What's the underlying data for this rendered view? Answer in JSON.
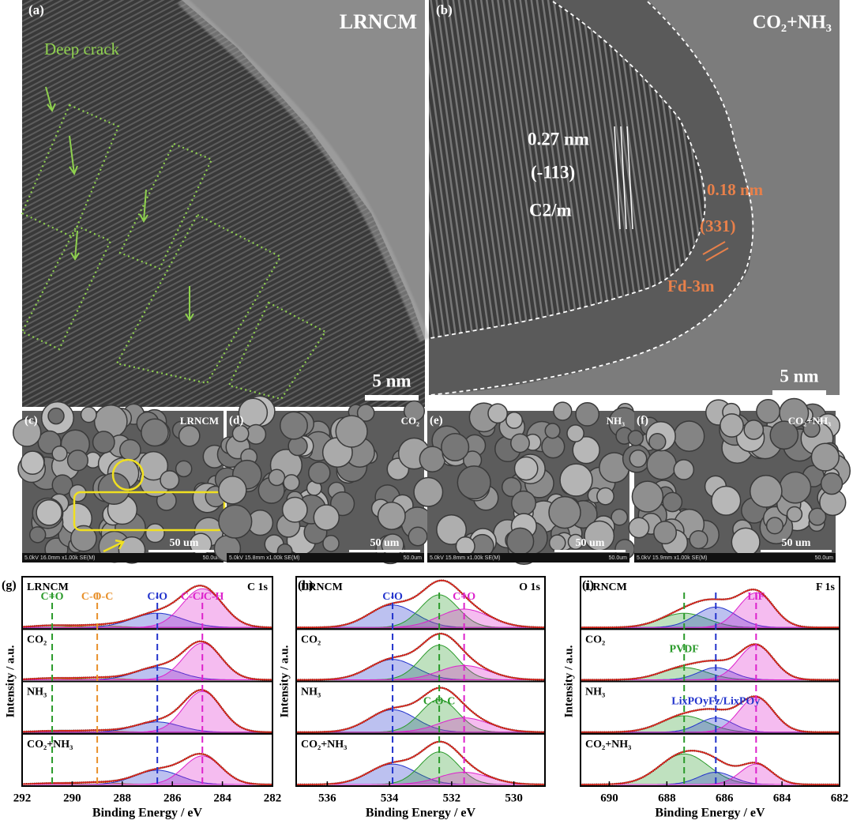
{
  "tem": [
    {
      "label": "(a)",
      "title": "LRNCM",
      "annotation": "Deep crack",
      "scale_bar": "5 nm"
    },
    {
      "label": "(b)",
      "title": "CO₂+NH₃",
      "spacing_1": "0.27 nm",
      "plane_1": "(-113)",
      "phase_1": "C2/m",
      "spacing_2": "0.18 nm",
      "plane_2": "(331)",
      "phase_2": "Fd-3m",
      "scale_bar": "5 nm"
    }
  ],
  "sem": [
    {
      "label": "(c)",
      "title": "LRNCM",
      "scale_bar": "50 um",
      "info": "5.0kV 16.0mm x1.00k SE(M)",
      "scale_text": "50.0um"
    },
    {
      "label": "(d)",
      "title": "CO₂",
      "scale_bar": "50 um",
      "info": "5.0kV 15.8mm x1.00k SE(M)",
      "scale_text": "50.0um"
    },
    {
      "label": "(e)",
      "title": "NH₃",
      "scale_bar": "50 um",
      "info": "5.0kV 15.8mm x1.00k SE(M)",
      "scale_text": "50.0um"
    },
    {
      "label": "(f)",
      "title": "CO₂+NH₃",
      "scale_bar": "50 um",
      "info": "5.0kV 15.9mm x1.00k SE(M)",
      "scale_text": "50.0um"
    }
  ],
  "xps": [
    {
      "label": "(g)",
      "element": "C 1s",
      "xlabel": "Binding Energy / eV",
      "ylabel": "Intensity / a.u.",
      "xlim": [
        292,
        282
      ],
      "xticks": [
        292,
        290,
        288,
        286,
        284,
        282
      ],
      "markers": [
        {
          "label": "C=O",
          "x": 290.8,
          "color": "#2a9a2a",
          "row": 0
        },
        {
          "label": "C-O-C",
          "x": 289,
          "color": "#e8902a",
          "row": 0
        },
        {
          "label": "C-O",
          "x": 286.6,
          "color": "#2233cc",
          "row": 0
        },
        {
          "label": "C-C/C-H",
          "x": 284.8,
          "color": "#dd22cc",
          "row": 0
        }
      ],
      "rows": [
        {
          "name": "LRNCM",
          "peaks": [
            {
              "m": 0,
              "h": 0.05,
              "w": 0.8
            },
            {
              "m": 1,
              "h": 0.05,
              "w": 0.8
            },
            {
              "m": 2,
              "h": 0.35,
              "w": 1.0
            },
            {
              "m": 3,
              "h": 0.95,
              "w": 0.8
            }
          ]
        },
        {
          "name": "CO₂",
          "peaks": [
            {
              "m": 0,
              "h": 0.04,
              "w": 0.8
            },
            {
              "m": 1,
              "h": 0.05,
              "w": 0.8
            },
            {
              "m": 2,
              "h": 0.3,
              "w": 0.9
            },
            {
              "m": 3,
              "h": 0.9,
              "w": 0.75
            }
          ]
        },
        {
          "name": "NH₃",
          "peaks": [
            {
              "m": 0,
              "h": 0.03,
              "w": 0.8
            },
            {
              "m": 1,
              "h": 0.04,
              "w": 0.8
            },
            {
              "m": 2,
              "h": 0.25,
              "w": 0.9
            },
            {
              "m": 3,
              "h": 1,
              "w": 0.75
            }
          ]
        },
        {
          "name": "CO₂+NH₃",
          "peaks": [
            {
              "m": 0,
              "h": 0.03,
              "w": 0.8
            },
            {
              "m": 1,
              "h": 0.05,
              "w": 0.8
            },
            {
              "m": 2,
              "h": 0.35,
              "w": 0.9
            },
            {
              "m": 3,
              "h": 0.7,
              "w": 0.75
            }
          ]
        }
      ]
    },
    {
      "label": "(h)",
      "element": "O 1s",
      "xlabel": "Binding Energy / eV",
      "ylabel": "Intensity / a.u.",
      "xlim": [
        537,
        529
      ],
      "xticks": [
        536,
        534,
        532,
        530
      ],
      "markers": [
        {
          "label": "C-O",
          "x": 533.9,
          "color": "#2233cc",
          "row": 0
        },
        {
          "label": "C-O-C",
          "x": 532.4,
          "color": "#2a9a2a",
          "row": 2
        },
        {
          "label": "C=O",
          "x": 531.6,
          "color": "#dd22cc",
          "row": 0
        }
      ],
      "rows": [
        {
          "name": "LRNCM",
          "peaks": [
            {
              "m": 0,
              "h": 0.55,
              "w": 0.75
            },
            {
              "m": 1,
              "h": 0.8,
              "w": 0.6
            },
            {
              "m": 2,
              "h": 0.45,
              "w": 0.8
            }
          ]
        },
        {
          "name": "CO₂",
          "peaks": [
            {
              "m": 0,
              "h": 0.5,
              "w": 0.75
            },
            {
              "m": 1,
              "h": 0.85,
              "w": 0.6
            },
            {
              "m": 2,
              "h": 0.35,
              "w": 0.8
            }
          ]
        },
        {
          "name": "NH₃",
          "peaks": [
            {
              "m": 0,
              "h": 0.55,
              "w": 0.75
            },
            {
              "m": 1,
              "h": 0.8,
              "w": 0.6
            },
            {
              "m": 2,
              "h": 0.35,
              "w": 0.8
            }
          ]
        },
        {
          "name": "CO₂+NH₃",
          "peaks": [
            {
              "m": 0,
              "h": 0.5,
              "w": 0.75
            },
            {
              "m": 1,
              "h": 0.8,
              "w": 0.6
            },
            {
              "m": 2,
              "h": 0.3,
              "w": 0.8
            }
          ]
        }
      ]
    },
    {
      "label": "(i)",
      "element": "F 1s",
      "xlabel": "Binding Energy / eV",
      "ylabel": "Intensity / a.u.",
      "xlim": [
        691,
        682
      ],
      "xticks": [
        690,
        688,
        686,
        684,
        682
      ],
      "markers": [
        {
          "label": "PVDF",
          "x": 687.4,
          "color": "#2a9a2a",
          "row": 1
        },
        {
          "label": "LixPOyFz/LixPOy",
          "x": 686.3,
          "color": "#2233cc",
          "row": 2
        },
        {
          "label": "LiF",
          "x": 684.9,
          "color": "#dd22cc",
          "row": 0
        }
      ],
      "rows": [
        {
          "name": "LRNCM",
          "peaks": [
            {
              "m": 0,
              "h": 0.35,
              "w": 0.8
            },
            {
              "m": 1,
              "h": 0.5,
              "w": 0.7
            },
            {
              "m": 2,
              "h": 0.85,
              "w": 0.6
            }
          ]
        },
        {
          "name": "CO₂",
          "peaks": [
            {
              "m": 0,
              "h": 0.3,
              "w": 0.8
            },
            {
              "m": 1,
              "h": 0.3,
              "w": 0.6
            },
            {
              "m": 2,
              "h": 0.85,
              "w": 0.6
            }
          ]
        },
        {
          "name": "NH₃",
          "peaks": [
            {
              "m": 0,
              "h": 0.4,
              "w": 0.8
            },
            {
              "m": 1,
              "h": 0.35,
              "w": 0.6
            },
            {
              "m": 2,
              "h": 0.85,
              "w": 0.6
            }
          ]
        },
        {
          "name": "CO₂+NH₃",
          "peaks": [
            {
              "m": 0,
              "h": 0.75,
              "w": 0.85
            },
            {
              "m": 1,
              "h": 0.3,
              "w": 0.6
            },
            {
              "m": 2,
              "h": 0.5,
              "w": 0.55
            }
          ]
        }
      ]
    }
  ]
}
